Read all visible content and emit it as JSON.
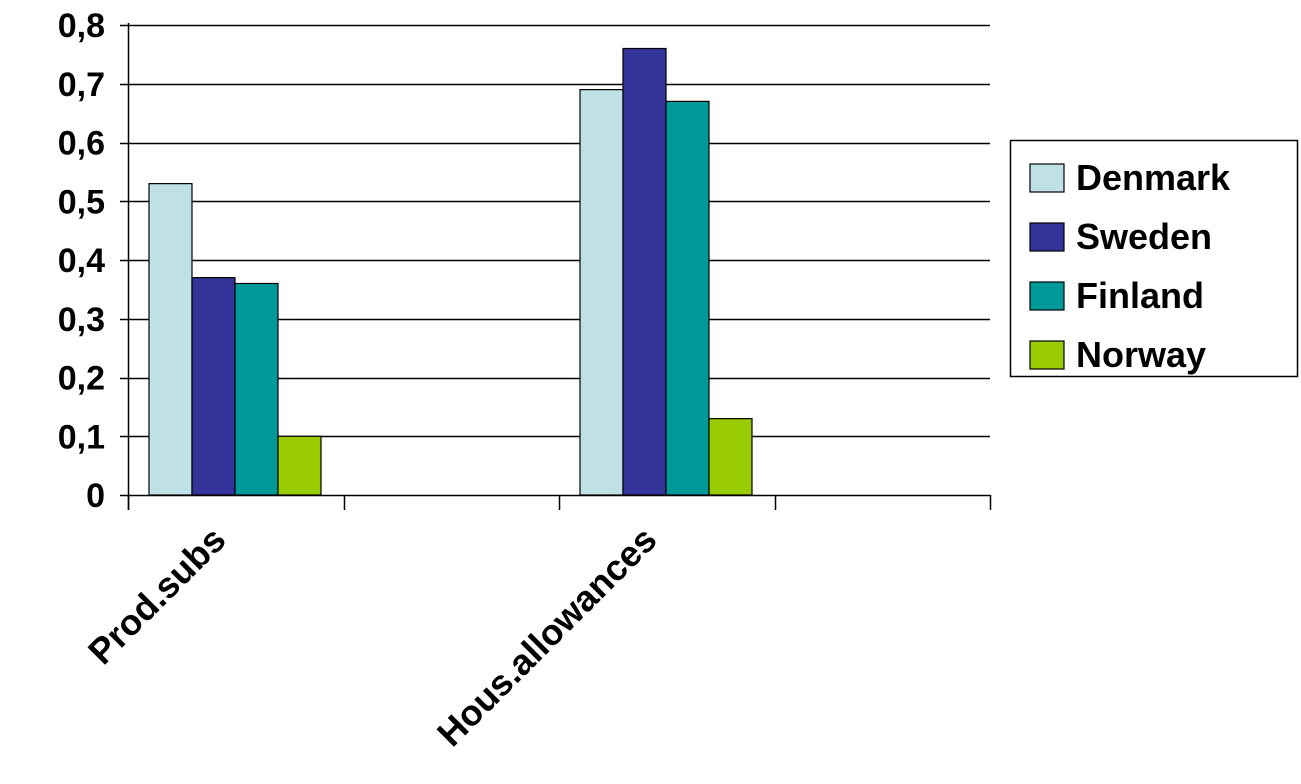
{
  "chart_data": {
    "type": "bar",
    "title": "",
    "xlabel": "",
    "ylabel": "",
    "categories": [
      "Prod.subs",
      "",
      "Hous.allowances",
      ""
    ],
    "series": [
      {
        "name": "Denmark",
        "color": "#BFE0E4",
        "values": [
          0.53,
          null,
          0.69,
          null
        ]
      },
      {
        "name": "Sweden",
        "color": "#333399",
        "values": [
          0.37,
          null,
          0.76,
          null
        ]
      },
      {
        "name": "Finland",
        "color": "#009999",
        "values": [
          0.36,
          null,
          0.67,
          null
        ]
      },
      {
        "name": "Norway",
        "color": "#99CC00",
        "values": [
          0.1,
          null,
          0.13,
          null
        ]
      }
    ],
    "ylim": [
      0,
      0.8
    ],
    "yticks": [
      0,
      0.1,
      0.2,
      0.3,
      0.4,
      0.5,
      0.6,
      0.7,
      0.8
    ],
    "ytick_labels": [
      "0",
      "0,1",
      "0,2",
      "0,3",
      "0,4",
      "0,5",
      "0,6",
      "0,7",
      "0,8"
    ],
    "grid": true,
    "legend_position": "right"
  }
}
